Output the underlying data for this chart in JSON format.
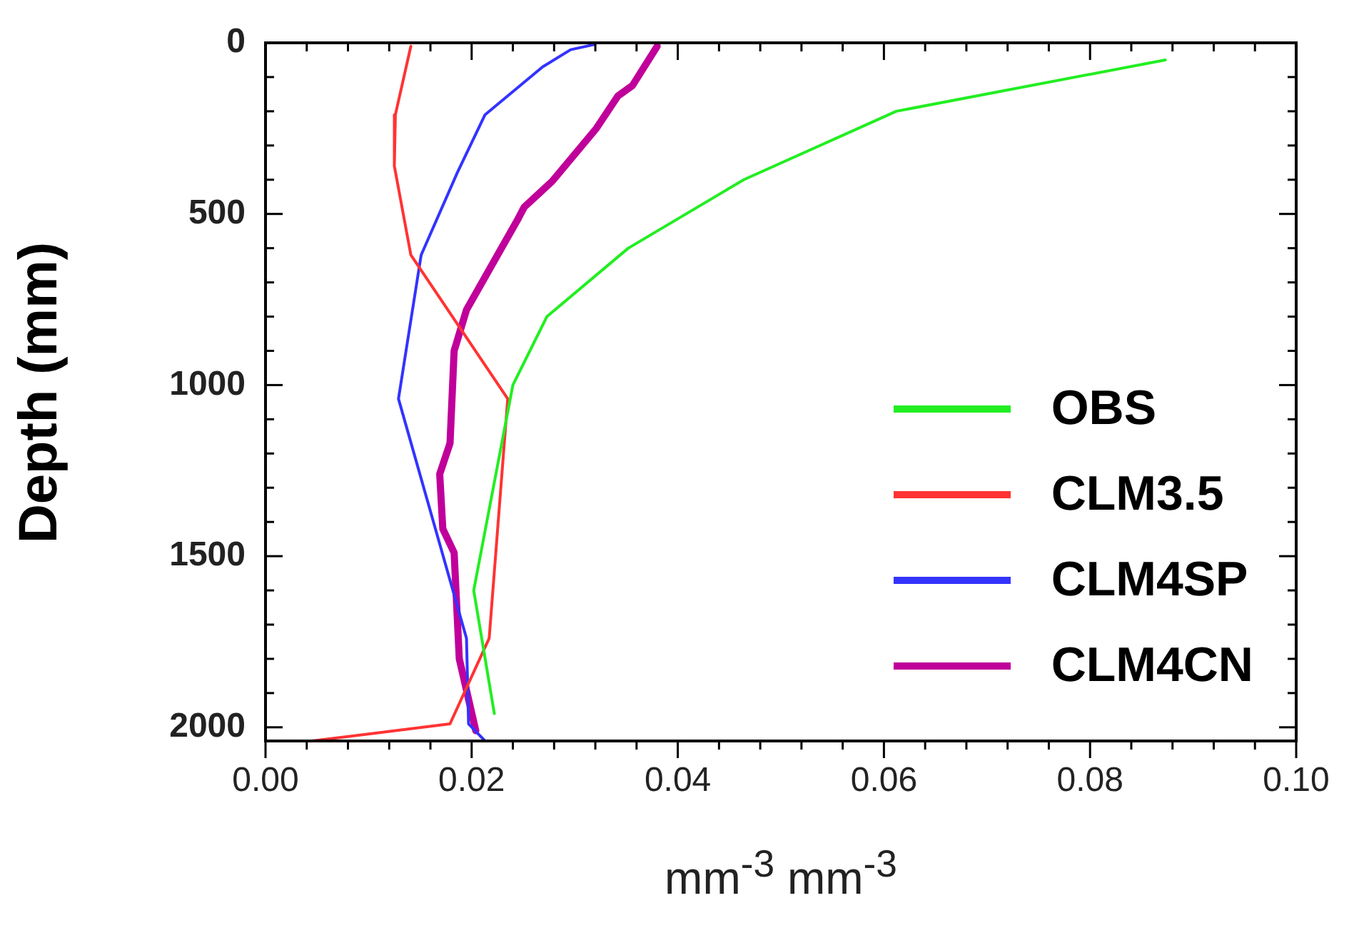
{
  "chart_data": {
    "type": "line",
    "xlabel": "mm$^{-3}$ mm$^{-3}$",
    "ylabel": "Depth (mm)",
    "xlim": [
      0,
      0.1
    ],
    "xticks": [
      {
        "value": 0,
        "label": "0.00"
      },
      {
        "value": 0.02,
        "label": "0.02"
      },
      {
        "value": 0.04,
        "label": "0.04"
      },
      {
        "value": 0.06,
        "label": "0.06"
      },
      {
        "value": 0.08,
        "label": "0.08"
      },
      {
        "value": 0.1,
        "label": "0.10"
      }
    ],
    "ylim": [
      2040,
      0
    ],
    "yticks": [
      0,
      500,
      1000,
      1500,
      2000
    ],
    "grid": false,
    "legend": "right",
    "marker": "none",
    "line_style": "solid",
    "series": [
      {
        "name": "OBS",
        "color": "#22ee22",
        "x": [
          0.0873,
          0.0612,
          0.0464,
          0.0352,
          0.0273,
          0.024,
          0.0202,
          0.0222
        ],
        "values": [
          50,
          200,
          400,
          600,
          800,
          1000,
          1600,
          1960
        ]
      },
      {
        "name": "CLM3.5",
        "color": "#ff3333",
        "x": [
          0.0141,
          0.0126,
          0.0125,
          0.0141,
          0.0235,
          0.0217,
          0.0179,
          0.0045
        ],
        "values": [
          10,
          210,
          360,
          620,
          1040,
          1740,
          1990,
          2040
        ]
      },
      {
        "name": "CLM4SP",
        "color": "#3333ff",
        "x": [
          0.0319,
          0.0296,
          0.0269,
          0.0213,
          0.0186,
          0.0151,
          0.0129,
          0.0195,
          0.0197,
          0.0213
        ],
        "values": [
          5,
          20,
          70,
          210,
          380,
          620,
          1040,
          1740,
          1990,
          2040
        ]
      },
      {
        "name": "CLM4CN",
        "color": "#c0009a",
        "x": [
          0.038,
          0.0356,
          0.0342,
          0.0321,
          0.0278,
          0.0251,
          0.0244,
          0.0227,
          0.0195,
          0.0183,
          0.0179,
          0.0169,
          0.0172,
          0.0183,
          0.0188,
          0.0204
        ],
        "values": [
          10,
          125,
          155,
          250,
          405,
          480,
          520,
          610,
          780,
          900,
          1170,
          1260,
          1420,
          1490,
          1800,
          2010
        ]
      }
    ]
  }
}
